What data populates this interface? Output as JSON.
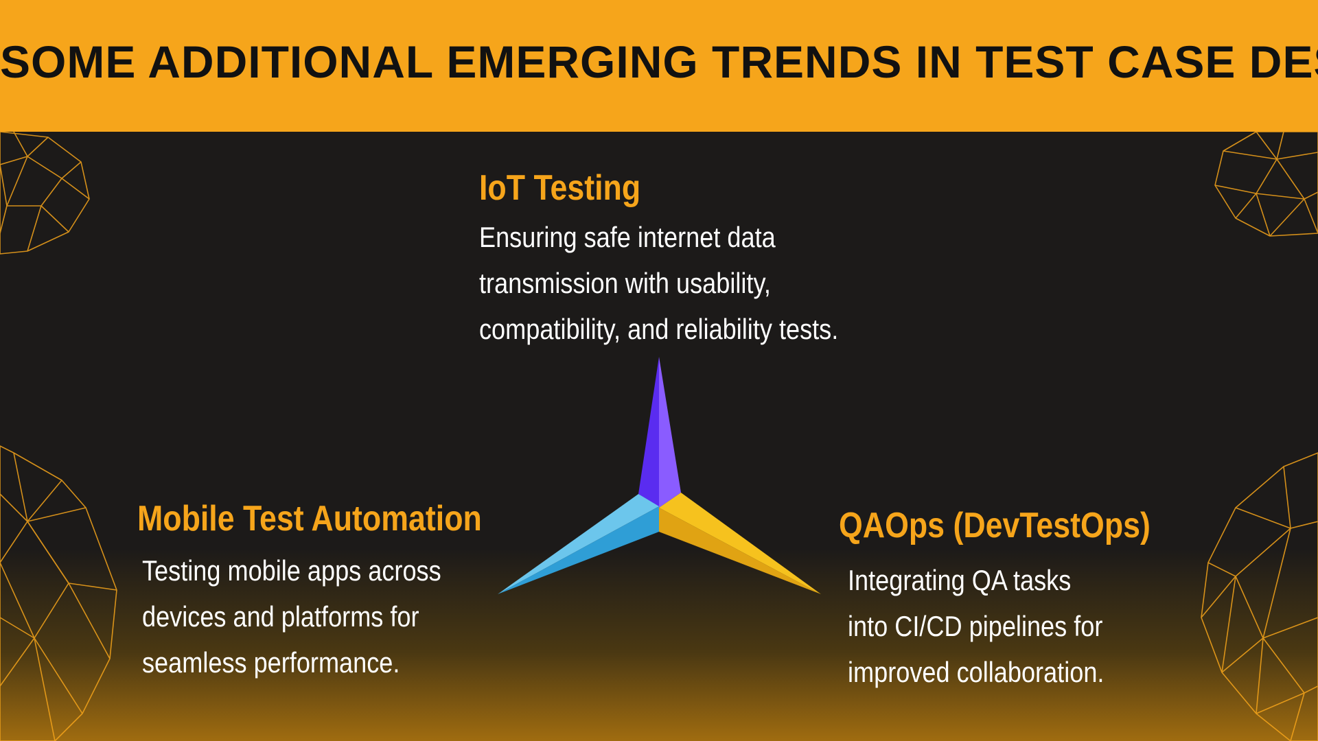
{
  "header": {
    "title": "SOME ADDITIONAL EMERGING TRENDS IN TEST CASE DESIGN"
  },
  "colors": {
    "header_bg": "#f6a51b",
    "background": "#1c1a19",
    "accent": "#f6a51b",
    "star_purple": "#7c4dff",
    "star_blue": "#6cc6ec",
    "star_yellow": "#f6c21e"
  },
  "trends": [
    {
      "title": "IoT Testing",
      "description": [
        "Ensuring safe internet data",
        "transmission with usability,",
        "compatibility, and reliability tests."
      ]
    },
    {
      "title": "Mobile Test Automation",
      "description": [
        "Testing mobile apps across",
        "devices and platforms for",
        "seamless performance."
      ]
    },
    {
      "title": "QAOps (DevTestOps)",
      "description": [
        "Integrating QA tasks",
        "into CI/CD pipelines for",
        "improved collaboration."
      ]
    }
  ],
  "icons": [
    "three-point-star-icon",
    "geodesic-sphere-icon"
  ]
}
